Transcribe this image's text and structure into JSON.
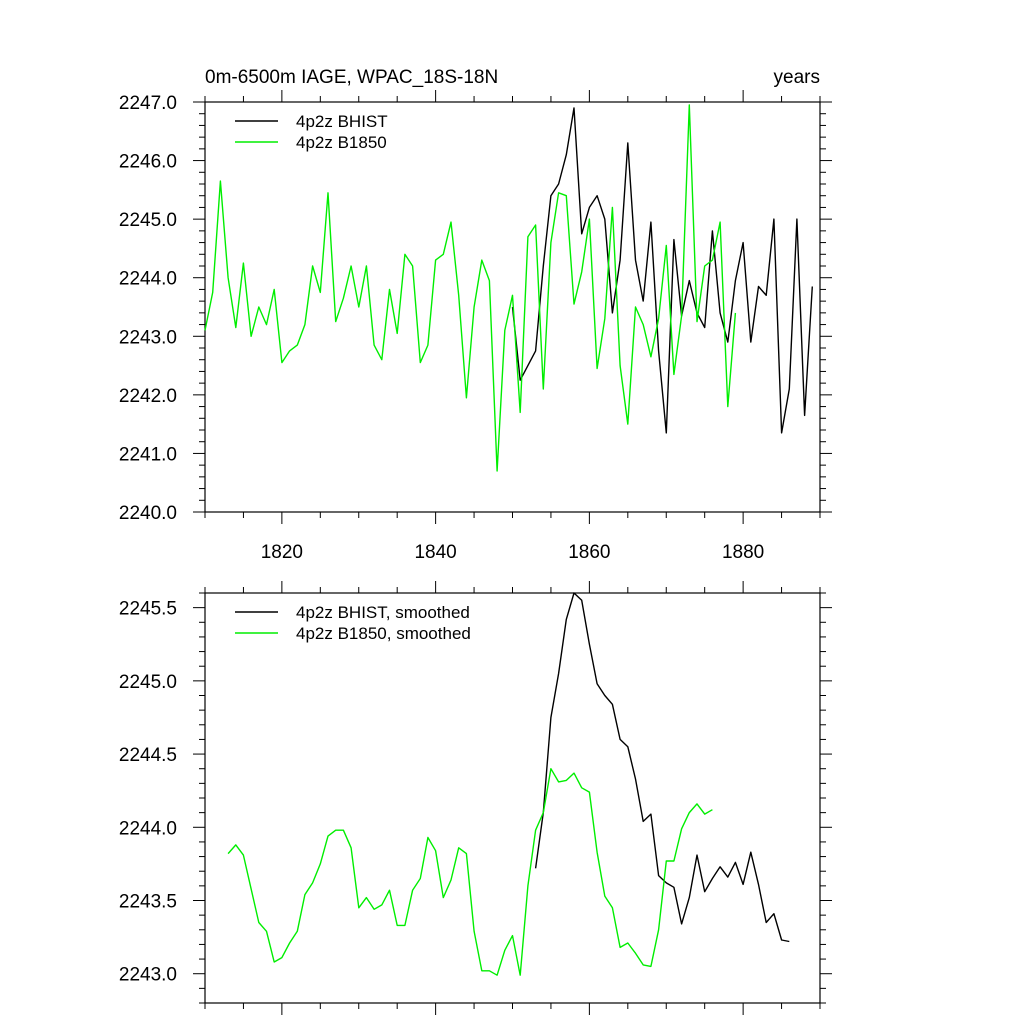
{
  "chart_data": [
    {
      "type": "line",
      "title": "0m-6500m IAGE, WPAC_18S-18N",
      "title_right": "years",
      "xlim": [
        1810,
        1890
      ],
      "ylim": [
        2240.0,
        2247.0
      ],
      "xticks": [
        1820,
        1840,
        1860,
        1880
      ],
      "xtick_labels": [
        "1820",
        "1840",
        "1860",
        "1880"
      ],
      "yticks": [
        2240.0,
        2241.0,
        2242.0,
        2243.0,
        2244.0,
        2245.0,
        2246.0,
        2247.0
      ],
      "ytick_labels": [
        "2240.0",
        "2241.0",
        "2242.0",
        "2243.0",
        "2244.0",
        "2245.0",
        "2246.0",
        "2247.0"
      ],
      "legend_position": "top-left",
      "series": [
        {
          "name": "4p2z BHIST",
          "color": "#000000",
          "x": [
            1850,
            1851,
            1852,
            1853,
            1854,
            1855,
            1856,
            1857,
            1858,
            1859,
            1860,
            1861,
            1862,
            1863,
            1864,
            1865,
            1866,
            1867,
            1868,
            1869,
            1870,
            1871,
            1872,
            1873,
            1874,
            1875,
            1876,
            1877,
            1878,
            1879,
            1880,
            1881,
            1882,
            1883,
            1884,
            1885,
            1886,
            1887,
            1888,
            1889
          ],
          "y": [
            2243.5,
            2242.25,
            2242.5,
            2242.75,
            2244.2,
            2245.4,
            2245.6,
            2246.1,
            2246.9,
            2244.75,
            2245.2,
            2245.4,
            2245.0,
            2243.4,
            2244.3,
            2246.3,
            2244.3,
            2243.6,
            2244.95,
            2242.75,
            2241.35,
            2244.65,
            2243.35,
            2243.95,
            2243.4,
            2243.15,
            2244.8,
            2243.4,
            2242.9,
            2243.95,
            2244.6,
            2242.9,
            2243.85,
            2243.7,
            2245.0,
            2241.35,
            2242.1,
            2245.0,
            2241.65,
            2243.85
          ]
        },
        {
          "name": "4p2z B1850",
          "color": "#00ee00",
          "x": [
            1810,
            1811,
            1812,
            1813,
            1814,
            1815,
            1816,
            1817,
            1818,
            1819,
            1820,
            1821,
            1822,
            1823,
            1824,
            1825,
            1826,
            1827,
            1828,
            1829,
            1830,
            1831,
            1832,
            1833,
            1834,
            1835,
            1836,
            1837,
            1838,
            1839,
            1840,
            1841,
            1842,
            1843,
            1844,
            1845,
            1846,
            1847,
            1848,
            1849,
            1850,
            1851,
            1852,
            1853,
            1854,
            1855,
            1856,
            1857,
            1858,
            1859,
            1860,
            1861,
            1862,
            1863,
            1864,
            1865,
            1866,
            1867,
            1868,
            1869,
            1870,
            1871,
            1872,
            1873,
            1874,
            1875,
            1876,
            1877,
            1878,
            1879
          ],
          "y": [
            2243.1,
            2243.75,
            2245.65,
            2244.0,
            2243.15,
            2244.25,
            2243.0,
            2243.5,
            2243.2,
            2243.8,
            2242.55,
            2242.75,
            2242.85,
            2243.2,
            2244.2,
            2243.75,
            2245.45,
            2243.25,
            2243.65,
            2244.2,
            2243.5,
            2244.2,
            2242.85,
            2242.6,
            2243.8,
            2243.05,
            2244.4,
            2244.2,
            2242.55,
            2242.85,
            2244.3,
            2244.4,
            2244.95,
            2243.7,
            2241.95,
            2243.5,
            2244.3,
            2243.95,
            2240.7,
            2243.1,
            2243.7,
            2241.7,
            2244.7,
            2244.9,
            2242.1,
            2244.6,
            2245.45,
            2245.4,
            2243.55,
            2244.1,
            2245.0,
            2242.45,
            2243.3,
            2245.2,
            2242.5,
            2241.5,
            2243.5,
            2243.2,
            2242.65,
            2243.3,
            2244.55,
            2242.35,
            2243.35,
            2246.95,
            2243.25,
            2244.2,
            2244.3,
            2244.95,
            2241.8,
            2243.4
          ]
        }
      ]
    },
    {
      "type": "line",
      "title": "",
      "xlim": [
        1810,
        1890
      ],
      "ylim": [
        2242.8,
        2245.6
      ],
      "xticks": [
        1820,
        1840,
        1860,
        1880
      ],
      "xtick_labels": [],
      "yticks": [
        2243.0,
        2243.5,
        2244.0,
        2244.5,
        2245.0,
        2245.5
      ],
      "ytick_labels": [
        "2243.0",
        "2243.5",
        "2244.0",
        "2244.5",
        "2245.0",
        "2245.5"
      ],
      "legend_position": "top-left",
      "series": [
        {
          "name": "4p2z BHIST, smoothed",
          "color": "#000000",
          "x": [
            1853,
            1854,
            1855,
            1856,
            1857,
            1858,
            1859,
            1860,
            1861,
            1862,
            1863,
            1864,
            1865,
            1866,
            1867,
            1868,
            1869,
            1870,
            1871,
            1872,
            1873,
            1874,
            1875,
            1876,
            1877,
            1878,
            1879,
            1880,
            1881,
            1882,
            1883,
            1884,
            1885,
            1886
          ],
          "y": [
            2243.72,
            2244.1,
            2244.75,
            2245.05,
            2245.42,
            2245.6,
            2245.55,
            2245.25,
            2244.98,
            2244.9,
            2244.84,
            2244.6,
            2244.55,
            2244.33,
            2244.04,
            2244.09,
            2243.67,
            2243.62,
            2243.59,
            2243.34,
            2243.52,
            2243.81,
            2243.56,
            2243.65,
            2243.73,
            2243.66,
            2243.76,
            2243.61,
            2243.83,
            2243.61,
            2243.35,
            2243.41,
            2243.23,
            2243.22
          ]
        },
        {
          "name": "4p2z B1850, smoothed",
          "color": "#00ee00",
          "x": [
            1813,
            1814,
            1815,
            1816,
            1817,
            1818,
            1819,
            1820,
            1821,
            1822,
            1823,
            1824,
            1825,
            1826,
            1827,
            1828,
            1829,
            1830,
            1831,
            1832,
            1833,
            1834,
            1835,
            1836,
            1837,
            1838,
            1839,
            1840,
            1841,
            1842,
            1843,
            1844,
            1845,
            1846,
            1847,
            1848,
            1849,
            1850,
            1851,
            1852,
            1853,
            1854,
            1855,
            1856,
            1857,
            1858,
            1859,
            1860,
            1861,
            1862,
            1863,
            1864,
            1865,
            1866,
            1867,
            1868,
            1869,
            1870,
            1871,
            1872,
            1873,
            1874,
            1875,
            1876
          ],
          "y": [
            2243.82,
            2243.88,
            2243.81,
            2243.58,
            2243.35,
            2243.29,
            2243.08,
            2243.11,
            2243.21,
            2243.29,
            2243.54,
            2243.62,
            2243.75,
            2243.94,
            2243.98,
            2243.98,
            2243.86,
            2243.45,
            2243.52,
            2243.44,
            2243.47,
            2243.57,
            2243.33,
            2243.33,
            2243.57,
            2243.65,
            2243.93,
            2243.84,
            2243.52,
            2243.64,
            2243.86,
            2243.82,
            2243.29,
            2243.02,
            2243.02,
            2242.99,
            2243.16,
            2243.26,
            2242.99,
            2243.6,
            2243.98,
            2244.1,
            2244.4,
            2244.31,
            2244.32,
            2244.37,
            2244.27,
            2244.24,
            2243.83,
            2243.53,
            2243.45,
            2243.18,
            2243.21,
            2243.14,
            2243.06,
            2243.05,
            2243.3,
            2243.77,
            2243.77,
            2243.99,
            2244.1,
            2244.16,
            2244.09,
            2244.12
          ]
        }
      ]
    }
  ]
}
